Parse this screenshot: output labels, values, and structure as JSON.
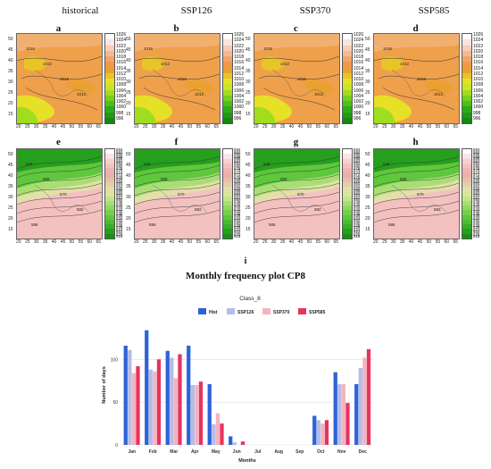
{
  "columns": [
    "historical",
    "SSP126",
    "SSP370",
    "SSP585"
  ],
  "rows": [
    {
      "letters": [
        "a",
        "b",
        "c",
        "d"
      ],
      "field": "pressure",
      "colorbar_labels": [
        "1026",
        "1024",
        "1022",
        "1020",
        "1018",
        "1016",
        "1014",
        "1012",
        "1010",
        "1008",
        "1006",
        "1004",
        "1002",
        "1000",
        "998",
        "996"
      ],
      "colorbar_colors": [
        "#ffffff",
        "#f6e6dc",
        "#f7cdb8",
        "#f6b894",
        "#f2a56a",
        "#f09a4a",
        "#eaa132",
        "#e9c426",
        "#e6e026",
        "#c9e626",
        "#a0dd1f",
        "#76cf1c",
        "#4cbf1a",
        "#2eab17",
        "#1f9a16",
        "#128a12"
      ],
      "contour_labels": [
        "1016",
        "1012",
        "1016",
        "1012"
      ]
    },
    {
      "letters": [
        "e",
        "f",
        "g",
        "h"
      ],
      "field": "geopotential",
      "colorbar_labels": [
        "594",
        "592",
        "590",
        "588",
        "586",
        "584",
        "582",
        "580",
        "578",
        "576",
        "574",
        "572",
        "570",
        "568",
        "566",
        "564",
        "562",
        "560",
        "558",
        "556",
        "554",
        "552",
        "550",
        "548",
        "546",
        "544",
        "542",
        "540",
        "538",
        "536",
        "534",
        "532",
        "530",
        "528",
        "526",
        "524",
        "522",
        "520",
        "518"
      ],
      "colorbar_colors": [
        "#ffffff",
        "#fde4e4",
        "#f8cfcf",
        "#f4c1c1",
        "#f0b4b4",
        "#ebb0a8",
        "#e7bfa9",
        "#e5cfaa",
        "#e2e0a8",
        "#d7e79a",
        "#c2e58a",
        "#a8df74",
        "#8ed95f",
        "#74d04b",
        "#5ec73c",
        "#48bd30",
        "#35b027",
        "#269f1e",
        "#1a8f18"
      ],
      "contour_labels": [
        "546",
        "558",
        "570",
        "582",
        "586"
      ]
    }
  ],
  "map_axes": {
    "x_ticks": [
      "20",
      "25",
      "30",
      "35",
      "40",
      "45",
      "50",
      "55",
      "60",
      "65"
    ],
    "y_ticks": [
      "50",
      "45",
      "40",
      "35",
      "30",
      "25",
      "20",
      "15"
    ]
  },
  "panel_i_letter": "i",
  "monthly_title": "Monthly frequency plot CP8",
  "chart_data": {
    "type": "bar",
    "title": "Class_8",
    "xlabel": "Months",
    "ylabel": "Number of days",
    "categories": [
      "Jan",
      "Feb",
      "Mar",
      "Apr",
      "May",
      "Jun",
      "Jul",
      "Aug",
      "Sep",
      "Oct",
      "Nov",
      "Dec"
    ],
    "ylim": [
      0,
      140
    ],
    "y_ticks": [
      0,
      50,
      100
    ],
    "grid": true,
    "legend_position": "top-center",
    "series": [
      {
        "name": "Hist",
        "color": "#2e63d8",
        "values": [
          116,
          134,
          110,
          116,
          71,
          10,
          0,
          0,
          0,
          34,
          85,
          71
        ]
      },
      {
        "name": "SSP126",
        "color": "#b4bde8",
        "values": [
          111,
          88,
          102,
          70,
          24,
          3,
          0,
          0,
          0,
          29,
          71,
          90
        ]
      },
      {
        "name": "SSP370",
        "color": "#f2b4c0",
        "values": [
          84,
          86,
          78,
          70,
          37,
          0,
          0,
          0,
          0,
          25,
          71,
          102
        ]
      },
      {
        "name": "SSP585",
        "color": "#e8335e",
        "values": [
          92,
          100,
          106,
          74,
          25,
          4,
          0,
          0,
          0,
          29,
          49,
          112
        ]
      }
    ]
  }
}
